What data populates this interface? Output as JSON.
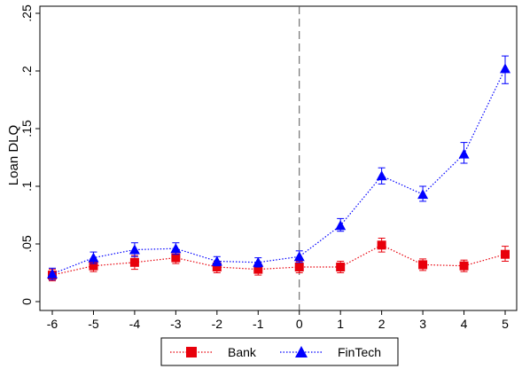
{
  "chart_data": {
    "type": "line",
    "title": "",
    "xlabel": "",
    "ylabel": "Loan DLQ",
    "x": [
      -6,
      -5,
      -4,
      -3,
      -2,
      -1,
      0,
      1,
      2,
      3,
      4,
      5
    ],
    "xlim": [
      -6,
      5
    ],
    "ylim": [
      0,
      0.25
    ],
    "x_ticks": [
      -6,
      -5,
      -4,
      -3,
      -2,
      -1,
      0,
      1,
      2,
      3,
      4,
      5
    ],
    "x_tick_labels": [
      "-6",
      "-5",
      "-4",
      "-3",
      "-2",
      "-1",
      "0",
      "1",
      "2",
      "3",
      "4",
      "5"
    ],
    "y_ticks": [
      0,
      0.05,
      0.1,
      0.15,
      0.2,
      0.25
    ],
    "y_tick_labels": [
      "0",
      ".05",
      ".1",
      ".15",
      ".2",
      ".25"
    ],
    "vline_x": 0,
    "grid": false,
    "legend_position": "bottom",
    "series": [
      {
        "name": "Bank",
        "color": "#e8000b",
        "marker": "square",
        "values": [
          0.023,
          0.031,
          0.034,
          0.038,
          0.03,
          0.028,
          0.03,
          0.03,
          0.049,
          0.032,
          0.031,
          0.041
        ],
        "ci_low": [
          0.018,
          0.026,
          0.028,
          0.033,
          0.025,
          0.023,
          0.025,
          0.025,
          0.043,
          0.027,
          0.026,
          0.035
        ],
        "ci_high": [
          0.028,
          0.036,
          0.04,
          0.043,
          0.035,
          0.033,
          0.035,
          0.035,
          0.055,
          0.037,
          0.036,
          0.048
        ]
      },
      {
        "name": "FinTech",
        "color": "#0000ff",
        "marker": "triangle",
        "values": [
          0.024,
          0.038,
          0.045,
          0.046,
          0.035,
          0.034,
          0.039,
          0.066,
          0.109,
          0.093,
          0.128,
          0.202
        ],
        "ci_low": [
          0.019,
          0.033,
          0.039,
          0.041,
          0.031,
          0.03,
          0.034,
          0.061,
          0.102,
          0.087,
          0.12,
          0.189
        ],
        "ci_high": [
          0.029,
          0.043,
          0.051,
          0.051,
          0.039,
          0.038,
          0.044,
          0.072,
          0.116,
          0.1,
          0.138,
          0.213
        ]
      }
    ]
  },
  "colors": {
    "bank": "#e8000b",
    "fintech": "#0000ff",
    "vline": "#555555"
  }
}
